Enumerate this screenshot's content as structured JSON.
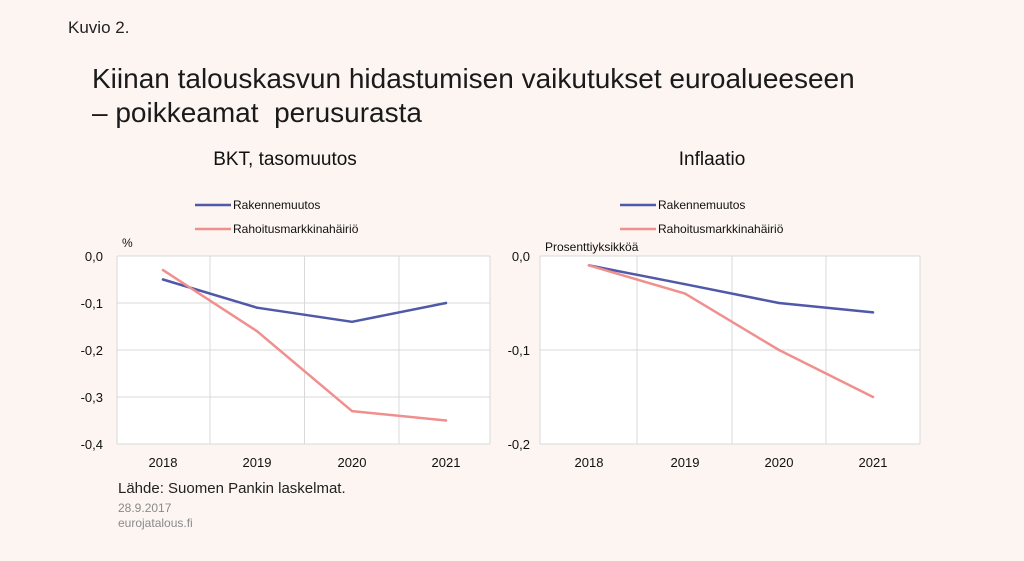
{
  "figure_label": "Kuvio 2.",
  "title_lines": [
    "Kiinan talouskasvun hidastumisen vaikutukset euroalueeseen",
    "– poikkeamat  perusurasta"
  ],
  "colors": {
    "series1": "#5058a8",
    "series2": "#f0908e"
  },
  "chart_data": [
    {
      "type": "line",
      "title": "BKT, tasomuutos",
      "unit": "%",
      "x": [
        "2018",
        "2019",
        "2020",
        "2021"
      ],
      "ylim": [
        -0.4,
        0.0
      ],
      "yticks": [
        "0,0",
        "-0,1",
        "-0,2",
        "-0,3",
        "-0,4"
      ],
      "grid": true,
      "legend_position": "top",
      "series": [
        {
          "name": "Rakennemuutos",
          "values": [
            -0.05,
            -0.11,
            -0.14,
            -0.1
          ]
        },
        {
          "name": "Rahoitusmarkkinahäiriö",
          "values": [
            -0.03,
            -0.16,
            -0.33,
            -0.35
          ]
        }
      ]
    },
    {
      "type": "line",
      "title": "Inflaatio",
      "unit": "Prosenttiyksikköä",
      "x": [
        "2018",
        "2019",
        "2020",
        "2021"
      ],
      "ylim": [
        -0.2,
        0.0
      ],
      "yticks": [
        "0,0",
        "-0,1",
        "-0,2"
      ],
      "grid": true,
      "legend_position": "top",
      "series": [
        {
          "name": "Rakennemuutos",
          "values": [
            -0.01,
            -0.03,
            -0.05,
            -0.06
          ]
        },
        {
          "name": "Rahoitusmarkkinahäiriö",
          "values": [
            -0.01,
            -0.04,
            -0.1,
            -0.15
          ]
        }
      ]
    }
  ],
  "footer": {
    "source": "Lähde: Suomen Pankin laskelmat.",
    "date": "28.9.2017",
    "site": "eurojatalous.fi"
  }
}
